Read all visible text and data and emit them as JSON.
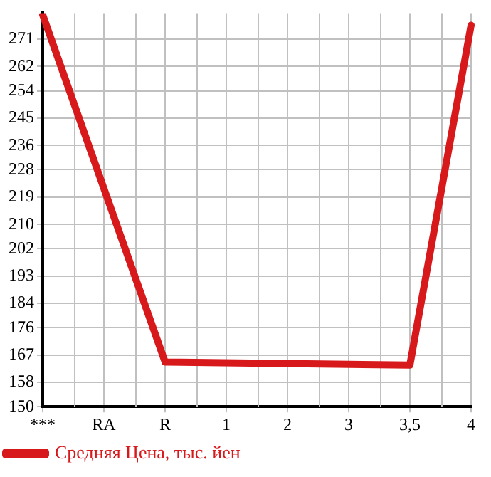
{
  "chart_data": {
    "type": "line",
    "categories": [
      "***",
      "RA",
      "R",
      "1",
      "2",
      "3",
      "3,5",
      "4"
    ],
    "series": [
      {
        "name": "Средняя Цена, тыс. йен",
        "color": "#d7191c",
        "values": [
          279,
          null,
          164.7,
          null,
          null,
          null,
          163.7,
          275.6
        ]
      }
    ],
    "ylim": [
      150,
      279.6
    ],
    "yticks": [
      150,
      158,
      167,
      176,
      184,
      193,
      202,
      210,
      219,
      228,
      236,
      245,
      254,
      262,
      271
    ],
    "grid": true,
    "legend": "bottom",
    "marker": "none",
    "line_style": "solid"
  }
}
